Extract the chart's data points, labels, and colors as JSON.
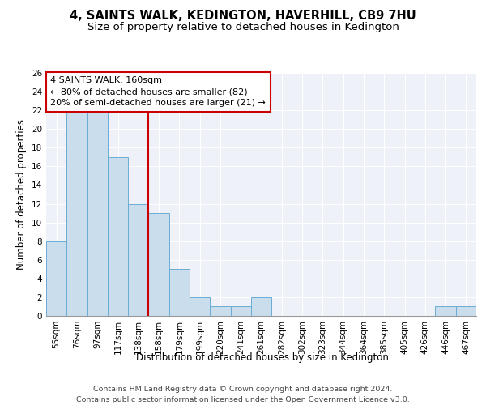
{
  "title": "4, SAINTS WALK, KEDINGTON, HAVERHILL, CB9 7HU",
  "subtitle": "Size of property relative to detached houses in Kedington",
  "xlabel": "Distribution of detached houses by size in Kedington",
  "ylabel": "Number of detached properties",
  "categories": [
    "55sqm",
    "76sqm",
    "97sqm",
    "117sqm",
    "138sqm",
    "158sqm",
    "179sqm",
    "199sqm",
    "220sqm",
    "241sqm",
    "261sqm",
    "282sqm",
    "302sqm",
    "323sqm",
    "344sqm",
    "364sqm",
    "385sqm",
    "405sqm",
    "426sqm",
    "446sqm",
    "467sqm"
  ],
  "values": [
    8,
    22,
    22,
    17,
    12,
    11,
    5,
    2,
    1,
    1,
    2,
    0,
    0,
    0,
    0,
    0,
    0,
    0,
    0,
    1,
    1
  ],
  "bar_color": "#c9dded",
  "bar_edge_color": "#6aacd6",
  "annotation_line1": "4 SAINTS WALK: 160sqm",
  "annotation_line2": "← 80% of detached houses are smaller (82)",
  "annotation_line3": "20% of semi-detached houses are larger (21) →",
  "annotation_box_color": "#cc0000",
  "red_line_index": 5,
  "ylim": [
    0,
    26
  ],
  "yticks": [
    0,
    2,
    4,
    6,
    8,
    10,
    12,
    14,
    16,
    18,
    20,
    22,
    24,
    26
  ],
  "footer_line1": "Contains HM Land Registry data © Crown copyright and database right 2024.",
  "footer_line2": "Contains public sector information licensed under the Open Government Licence v3.0.",
  "background_color": "#eef2f8",
  "grid_color": "#ffffff",
  "title_fontsize": 10.5,
  "subtitle_fontsize": 9.5,
  "axis_label_fontsize": 8.5,
  "tick_fontsize": 7.5,
  "footer_fontsize": 6.8,
  "annotation_fontsize": 8
}
